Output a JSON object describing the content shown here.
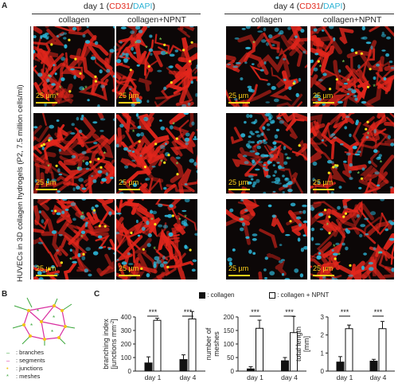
{
  "panel_a": {
    "letter": "A",
    "day1_label": "day 1 (",
    "day4_label": "day 4 (",
    "cd31": "CD31",
    "slash": "/",
    "dapi": "DAPI",
    "close_paren": ")",
    "col_collagen": "collagen",
    "col_collagen_npnt": "collagen+NPNT",
    "ylabel": "HUVECs in 3D collagen hydrogels (P2, 7.5 million cells/ml)",
    "scale_labels": [
      "25 µm*",
      "25 µm",
      "25 µm",
      "25 µm",
      "25 µm",
      "25 µm",
      "25 µm",
      "25 µm",
      "25 µm",
      "25 µm",
      "25 µm",
      "25 µm"
    ],
    "colors": {
      "cd31": "#e3261c",
      "dapi": "#2db4d6",
      "junction": "#ffe11a",
      "mesh": "#7ed957",
      "scale": "#ffd21a",
      "tile_bg": "#0c0707"
    }
  },
  "panel_b": {
    "letter": "B",
    "legend": [
      {
        "key": "dash",
        "text": ": branches",
        "color": "#3aa63a"
      },
      {
        "key": "dash",
        "text": ": segments",
        "color": "#d92ea0"
      },
      {
        "key": "dot",
        "text": ": junctions",
        "color": "#f2c318"
      },
      {
        "key": "star",
        "text": ": meshes",
        "color": "#3aa63a"
      }
    ]
  },
  "panel_c": {
    "letter": "C",
    "legend_collagen": ": collagen",
    "legend_npnt": ": collagen + NPNT",
    "significance": "***"
  },
  "chart_data": [
    {
      "type": "bar",
      "categories": [
        "day 1",
        "day 4"
      ],
      "series": [
        {
          "name": "collagen",
          "values": [
            60,
            85
          ],
          "errors": [
            45,
            35
          ]
        },
        {
          "name": "collagen + NPNT",
          "values": [
            375,
            385
          ],
          "errors": [
            15,
            55
          ]
        }
      ],
      "ylabel": "branching index [junctions mm⁻²]",
      "ylabel_line1": "branching index",
      "ylabel_line2": "[junctions mm",
      "ylabel_sup": "-2",
      "ylabel_end": "]",
      "ylim": [
        0,
        400
      ],
      "yticks": [
        0,
        100,
        200,
        300,
        400
      ],
      "significance": [
        "***",
        "***"
      ]
    },
    {
      "type": "bar",
      "categories": [
        "day 1",
        "day 4"
      ],
      "series": [
        {
          "name": "collagen",
          "values": [
            8,
            38
          ],
          "errors": [
            8,
            12
          ]
        },
        {
          "name": "collagen + NPNT",
          "values": [
            158,
            142
          ],
          "errors": [
            30,
            60
          ]
        }
      ],
      "ylabel_line1": "number of",
      "ylabel_line2": "meshes",
      "ylim": [
        0,
        200
      ],
      "yticks": [
        0,
        50,
        100,
        150,
        200
      ],
      "significance": [
        "***",
        "***"
      ]
    },
    {
      "type": "bar",
      "categories": [
        "day 1",
        "day 4"
      ],
      "series": [
        {
          "name": "collagen",
          "values": [
            0.5,
            0.55
          ],
          "errors": [
            0.3,
            0.1
          ]
        },
        {
          "name": "collagen + NPNT",
          "values": [
            2.35,
            2.35
          ],
          "errors": [
            0.2,
            0.4
          ]
        }
      ],
      "ylabel_line1": "total length",
      "ylabel_line2": "[mm]",
      "ylim": [
        0,
        3
      ],
      "yticks": [
        0,
        1,
        2,
        3
      ],
      "significance": [
        "***",
        "***"
      ]
    }
  ]
}
